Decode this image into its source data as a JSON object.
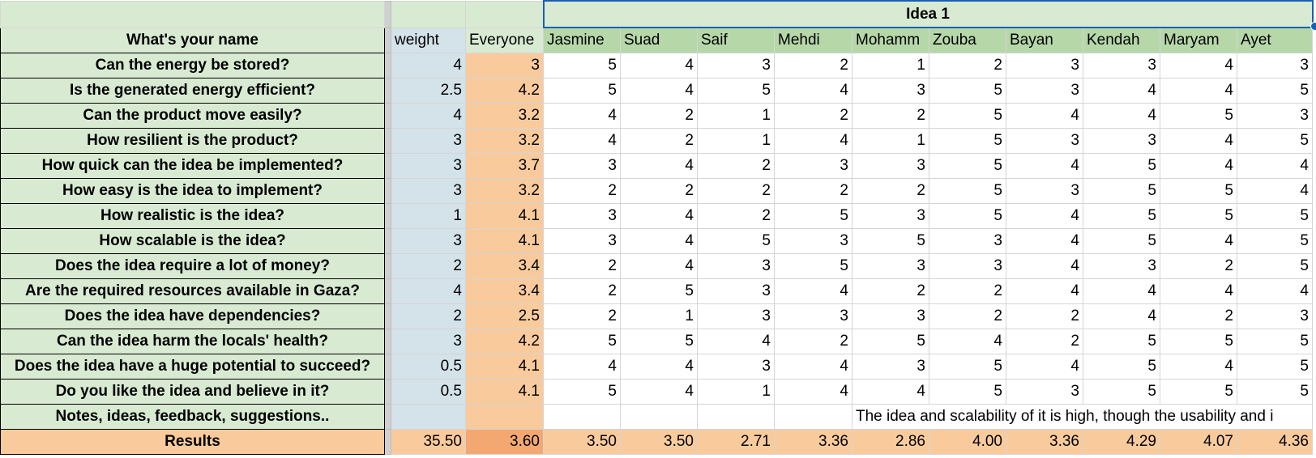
{
  "idea_title": "Idea 1",
  "header": {
    "question_label": "What's your name",
    "weight_label": "weight",
    "everyone_label": "Everyone",
    "names": [
      "Jasmine",
      "Suad",
      "Saif",
      "Mehdi",
      "Mohamm",
      "Zouba",
      "Bayan",
      "Kendah",
      "Maryam",
      "Ayet"
    ]
  },
  "rows": [
    {
      "q": "Can the energy be stored?",
      "w": "4",
      "ev": "3",
      "s": [
        "5",
        "4",
        "3",
        "2",
        "1",
        "2",
        "3",
        "3",
        "4",
        "3"
      ]
    },
    {
      "q": "Is the generated energy efficient?",
      "w": "2.5",
      "ev": "4.2",
      "s": [
        "5",
        "4",
        "5",
        "4",
        "3",
        "5",
        "3",
        "4",
        "4",
        "5"
      ]
    },
    {
      "q": "Can the product move easily?",
      "w": "4",
      "ev": "3.2",
      "s": [
        "4",
        "2",
        "1",
        "2",
        "2",
        "5",
        "4",
        "4",
        "5",
        "3"
      ]
    },
    {
      "q": "How resilient is the product?",
      "w": "3",
      "ev": "3.2",
      "s": [
        "4",
        "2",
        "1",
        "4",
        "1",
        "5",
        "3",
        "3",
        "4",
        "5"
      ]
    },
    {
      "q": "How quick can the idea be implemented?",
      "w": "3",
      "ev": "3.7",
      "s": [
        "3",
        "4",
        "2",
        "3",
        "3",
        "5",
        "4",
        "5",
        "4",
        "4"
      ]
    },
    {
      "q": "How easy is the idea to implement?",
      "w": "3",
      "ev": "3.2",
      "s": [
        "2",
        "2",
        "2",
        "2",
        "2",
        "5",
        "3",
        "5",
        "5",
        "4"
      ]
    },
    {
      "q": "How realistic is the idea?",
      "w": "1",
      "ev": "4.1",
      "s": [
        "3",
        "4",
        "2",
        "5",
        "3",
        "5",
        "4",
        "5",
        "5",
        "5"
      ]
    },
    {
      "q": "How scalable is the idea?",
      "w": "3",
      "ev": "4.1",
      "s": [
        "3",
        "4",
        "5",
        "3",
        "5",
        "3",
        "4",
        "5",
        "4",
        "5"
      ]
    },
    {
      "q": "Does the idea require a lot of money?",
      "w": "2",
      "ev": "3.4",
      "s": [
        "2",
        "4",
        "3",
        "5",
        "3",
        "3",
        "4",
        "3",
        "2",
        "5"
      ]
    },
    {
      "q": "Are the required resources available in Gaza?",
      "w": "4",
      "ev": "3.4",
      "s": [
        "2",
        "5",
        "3",
        "4",
        "2",
        "2",
        "4",
        "4",
        "4",
        "4"
      ]
    },
    {
      "q": "Does the idea have dependencies?",
      "w": "2",
      "ev": "2.5",
      "s": [
        "2",
        "1",
        "3",
        "3",
        "3",
        "2",
        "2",
        "4",
        "2",
        "3"
      ]
    },
    {
      "q": "Can the idea harm the locals' health?",
      "w": "3",
      "ev": "4.2",
      "s": [
        "5",
        "5",
        "4",
        "2",
        "5",
        "4",
        "2",
        "5",
        "5",
        "5"
      ]
    },
    {
      "q": "Does the idea have a huge potential to succeed?",
      "w": "0.5",
      "ev": "4.1",
      "s": [
        "4",
        "4",
        "3",
        "4",
        "3",
        "5",
        "4",
        "5",
        "4",
        "5"
      ]
    },
    {
      "q": "Do you like the idea and believe in it?",
      "w": "0.5",
      "ev": "4.1",
      "s": [
        "5",
        "4",
        "1",
        "4",
        "4",
        "5",
        "3",
        "5",
        "5",
        "5"
      ]
    }
  ],
  "notes": {
    "label": "Notes, ideas, feedback, suggestions..",
    "text": "The idea and scalability of it is high, though the usability and i"
  },
  "results": {
    "label": "Results",
    "weight_total": "35.50",
    "everyone": "3.60",
    "scores": [
      "3.50",
      "3.50",
      "2.71",
      "3.36",
      "2.86",
      "4.00",
      "3.36",
      "4.29",
      "4.07",
      "4.36"
    ]
  },
  "colors": {
    "question_bg": "#d9ead3",
    "weight_bg": "#d4e2e9",
    "everyone_bg": "#f9cb9c",
    "name_header_bg": "#b6d7a8",
    "results_bg": "#f9cb9c",
    "selection": "#1a5fb4"
  }
}
